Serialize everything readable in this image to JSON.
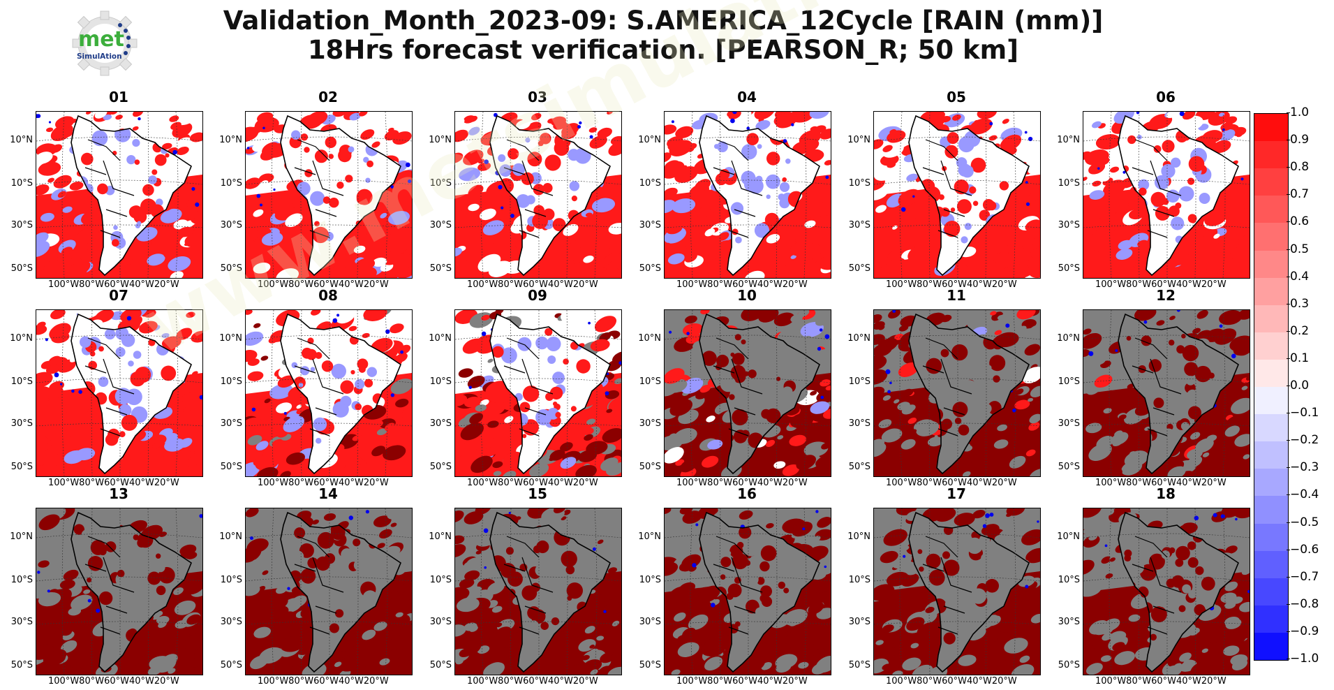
{
  "title": {
    "line1": "Validation_Month_2023-09: S.AMERICA_12Cycle [RAIN (mm)]",
    "line2": "18Hrs forecast verification.  [PEARSON_R; 50 km]"
  },
  "logo": {
    "top_text": "met",
    "bottom_text": "SimulAtion"
  },
  "watermark": "www.metsimulation.com",
  "axes": {
    "lat_labels": [
      "10°N",
      "10°S",
      "30°S",
      "50°S"
    ],
    "lon_label": "100°W80°W60°W40°W20°W"
  },
  "panels": [
    {
      "label": "01",
      "cover": 0.0
    },
    {
      "label": "02",
      "cover": 0.0
    },
    {
      "label": "03",
      "cover": 0.0
    },
    {
      "label": "04",
      "cover": 0.0
    },
    {
      "label": "05",
      "cover": 0.0
    },
    {
      "label": "06",
      "cover": 0.0
    },
    {
      "label": "07",
      "cover": 0.0
    },
    {
      "label": "08",
      "cover": 0.2
    },
    {
      "label": "09",
      "cover": 0.45
    },
    {
      "label": "10",
      "cover": 0.65
    },
    {
      "label": "11",
      "cover": 0.85
    },
    {
      "label": "12",
      "cover": 0.95
    },
    {
      "label": "13",
      "cover": 1.0
    },
    {
      "label": "14",
      "cover": 1.0
    },
    {
      "label": "15",
      "cover": 1.0
    },
    {
      "label": "16",
      "cover": 1.0
    },
    {
      "label": "17",
      "cover": 1.0
    },
    {
      "label": "18",
      "cover": 1.0
    }
  ],
  "colorbar": {
    "ticks": [
      "1.0",
      "0.9",
      "0.8",
      "0.7",
      "0.6",
      "0.5",
      "0.4",
      "0.3",
      "0.2",
      "0.1",
      "0.0",
      "−0.1",
      "−0.2",
      "−0.3",
      "−0.4",
      "−0.5",
      "−0.6",
      "−0.7",
      "−0.8",
      "−0.9",
      "−1.0"
    ],
    "colors": [
      "#ff0d0d",
      "#ff2828",
      "#ff4040",
      "#ff5858",
      "#ff7070",
      "#ff8888",
      "#ffa0a0",
      "#ffb8b8",
      "#ffd0d0",
      "#ffe8e8",
      "#f0f0ff",
      "#d8d8ff",
      "#c0c0ff",
      "#a8a8ff",
      "#9090ff",
      "#7878ff",
      "#6060ff",
      "#4848ff",
      "#3030ff",
      "#1010ff"
    ]
  },
  "colors": {
    "positive": "#ff1a1a",
    "dark_positive": "#8b0000",
    "missing": "#808080",
    "negative": "#9999ff",
    "strong_negative": "#0000ee"
  }
}
